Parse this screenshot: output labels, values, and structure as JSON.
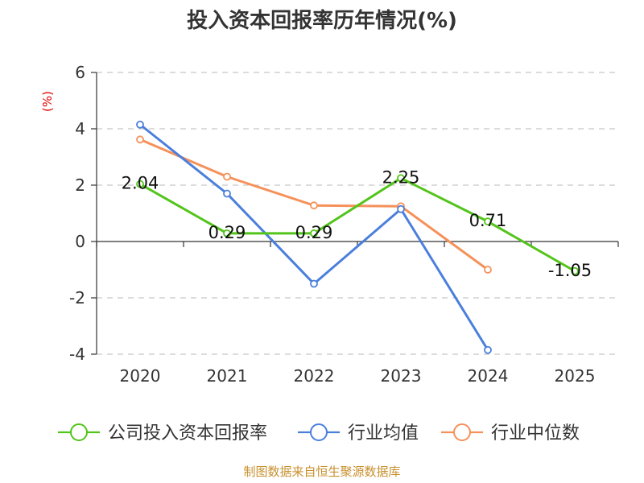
{
  "chart_data": {
    "type": "line",
    "title": "投入资本回报率历年情况(%)",
    "ylabel": "(%)",
    "xlabel": "",
    "categories": [
      "2020",
      "2021",
      "2022",
      "2023",
      "2024",
      "2025"
    ],
    "ylim": [
      -4,
      6
    ],
    "yticks": [
      -4,
      -2,
      0,
      2,
      4,
      6
    ],
    "grid": true,
    "legend_position": "bottom",
    "series": [
      {
        "name": "公司投入资本回报率",
        "color": "#52c41a",
        "values": [
          2.04,
          0.29,
          0.29,
          2.25,
          0.71,
          -1.05
        ],
        "labels": [
          "2.04",
          "0.29",
          "0.29",
          "2.25",
          "0.71",
          "-1.05"
        ]
      },
      {
        "name": "行业均值",
        "color": "#4a7fdc",
        "values": [
          4.15,
          1.7,
          -1.5,
          1.15,
          -3.85,
          null
        ]
      },
      {
        "name": "行业中位数",
        "color": "#f5915a",
        "values": [
          3.62,
          2.3,
          1.28,
          1.25,
          -1.0,
          null
        ]
      }
    ],
    "source": "制图数据来自恒生聚源数据库"
  }
}
